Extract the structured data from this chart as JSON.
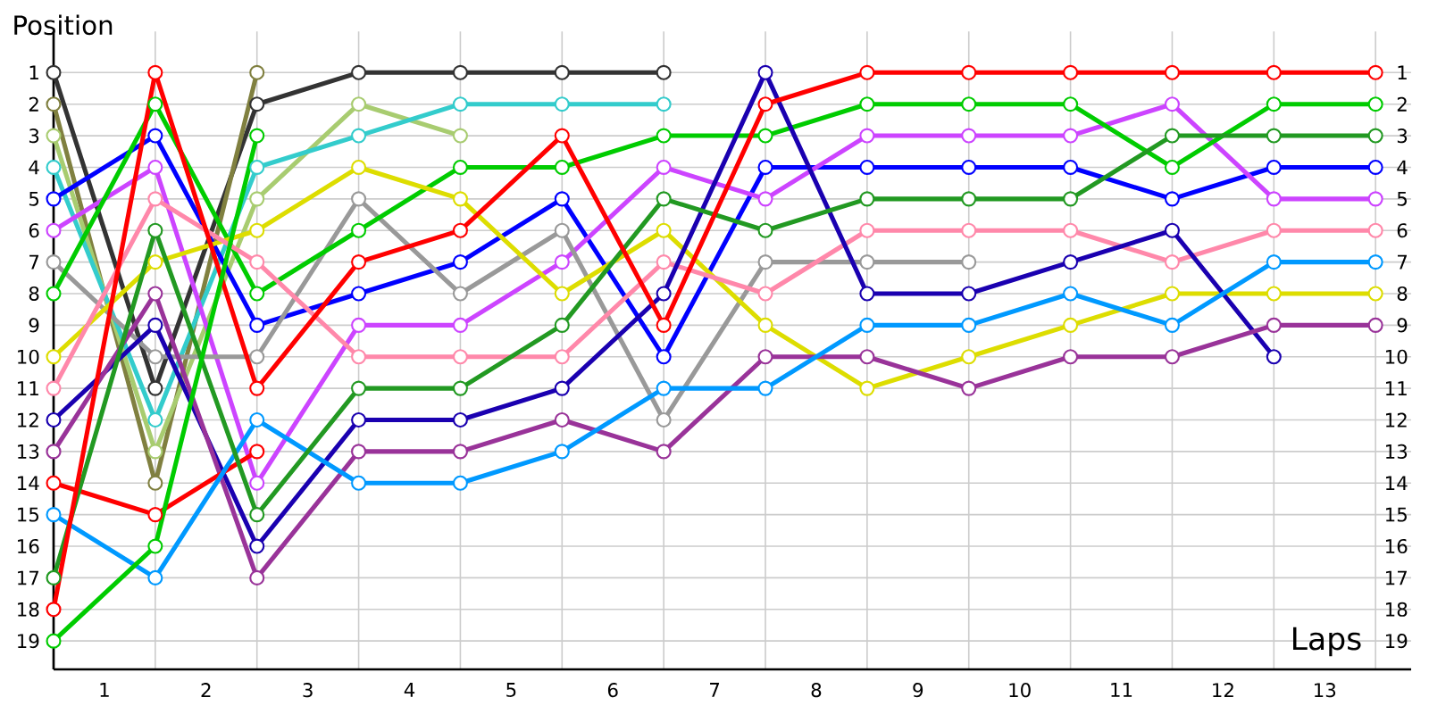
{
  "chart_data": {
    "type": "line",
    "xlabel": "Laps",
    "ylabel": "Position",
    "x": [
      0,
      1,
      2,
      3,
      4,
      5,
      6,
      7,
      8,
      9,
      10,
      11,
      12,
      13
    ],
    "xlim": [
      0,
      13.35
    ],
    "xticks": [
      {
        "value": 0,
        "label": null
      },
      {
        "value": 0.5,
        "label": "1"
      },
      {
        "value": 1,
        "label": null
      },
      {
        "value": 1.5,
        "label": "2"
      },
      {
        "value": 2,
        "label": null
      },
      {
        "value": 2.5,
        "label": "3"
      },
      {
        "value": 3,
        "label": null
      },
      {
        "value": 3.5,
        "label": "4"
      },
      {
        "value": 4,
        "label": null
      },
      {
        "value": 4.5,
        "label": "5"
      },
      {
        "value": 5,
        "label": null
      },
      {
        "value": 5.5,
        "label": "6"
      },
      {
        "value": 6,
        "label": null
      },
      {
        "value": 6.5,
        "label": "7"
      },
      {
        "value": 7,
        "label": null
      },
      {
        "value": 7.5,
        "label": "8"
      },
      {
        "value": 8,
        "label": null
      },
      {
        "value": 8.5,
        "label": "9"
      },
      {
        "value": 9,
        "label": null
      },
      {
        "value": 9.5,
        "label": "10"
      },
      {
        "value": 10,
        "label": null
      },
      {
        "value": 10.5,
        "label": "11"
      },
      {
        "value": 11,
        "label": null
      },
      {
        "value": 11.5,
        "label": "12"
      },
      {
        "value": 12,
        "label": null
      },
      {
        "value": 12.5,
        "label": "13"
      },
      {
        "value": 13,
        "label": null
      }
    ],
    "ylim": [
      19.9,
      -0.3
    ],
    "yticks": [
      1,
      2,
      3,
      4,
      5,
      6,
      7,
      8,
      9,
      10,
      11,
      12,
      13,
      14,
      15,
      16,
      17,
      18,
      19
    ],
    "y2lim": [
      19.9,
      -0.3
    ],
    "y2ticks": [
      1,
      2,
      3,
      4,
      5,
      6,
      7,
      8,
      9,
      10,
      11,
      12,
      13,
      14,
      15,
      16,
      17,
      18,
      19
    ],
    "grid": true,
    "marker": "circle",
    "line_style": "solid",
    "series": [
      {
        "color": "#333333",
        "values": [
          1,
          11,
          2,
          1,
          1,
          1,
          1,
          null,
          null,
          null,
          null,
          null,
          null,
          null
        ]
      },
      {
        "color": "#808040",
        "values": [
          2,
          14,
          1,
          null,
          null,
          null,
          null,
          null,
          null,
          null,
          null,
          null,
          null,
          null
        ]
      },
      {
        "color": "#a8cc70",
        "values": [
          3,
          13,
          5,
          2,
          3,
          null,
          null,
          null,
          null,
          null,
          null,
          null,
          null,
          null
        ]
      },
      {
        "color": "#33cccc",
        "values": [
          4,
          12,
          4,
          3,
          2,
          2,
          2,
          null,
          null,
          null,
          null,
          null,
          null,
          null
        ]
      },
      {
        "color": "#0000ff",
        "values": [
          5,
          3,
          9,
          8,
          7,
          5,
          10,
          4,
          4,
          4,
          4,
          5,
          4,
          4
        ]
      },
      {
        "color": "#cc44ff",
        "values": [
          6,
          4,
          14,
          9,
          9,
          7,
          4,
          5,
          3,
          3,
          3,
          2,
          5,
          5
        ]
      },
      {
        "color": "#999999",
        "values": [
          7,
          10,
          10,
          5,
          8,
          6,
          12,
          7,
          7,
          7,
          null,
          null,
          null,
          null
        ]
      },
      {
        "color": "#00cc00",
        "values": [
          8,
          2,
          8,
          6,
          4,
          4,
          3,
          3,
          2,
          2,
          2,
          4,
          2,
          2
        ]
      },
      {
        "color": "#dddd00",
        "values": [
          10,
          7,
          6,
          4,
          5,
          8,
          6,
          9,
          11,
          10,
          9,
          8,
          8,
          8
        ]
      },
      {
        "color": "#ff88aa",
        "values": [
          11,
          5,
          7,
          10,
          10,
          10,
          7,
          8,
          6,
          6,
          6,
          7,
          6,
          6
        ]
      },
      {
        "color": "#1a00b0",
        "values": [
          12,
          9,
          16,
          12,
          12,
          11,
          8,
          1,
          8,
          8,
          7,
          6,
          10,
          null
        ]
      },
      {
        "color": "#993399",
        "values": [
          13,
          8,
          17,
          13,
          13,
          12,
          13,
          10,
          10,
          11,
          10,
          10,
          9,
          9
        ]
      },
      {
        "color": "#ff0000",
        "values": [
          14,
          15,
          13,
          null,
          null,
          null,
          null,
          null,
          null,
          null,
          null,
          null,
          null,
          null
        ]
      },
      {
        "color": "#0099ff",
        "values": [
          15,
          17,
          12,
          14,
          14,
          13,
          11,
          11,
          9,
          9,
          8,
          9,
          7,
          7
        ]
      },
      {
        "color": "#229922",
        "values": [
          17,
          6,
          15,
          11,
          11,
          9,
          5,
          6,
          5,
          5,
          5,
          3,
          3,
          3
        ]
      },
      {
        "color": "#ff0000",
        "values": [
          18,
          1,
          11,
          7,
          6,
          3,
          9,
          2,
          1,
          1,
          1,
          1,
          1,
          1
        ]
      },
      {
        "color": "#00cc00",
        "values": [
          19,
          16,
          3,
          null,
          null,
          null,
          null,
          null,
          null,
          null,
          null,
          null,
          null,
          null
        ]
      }
    ]
  }
}
